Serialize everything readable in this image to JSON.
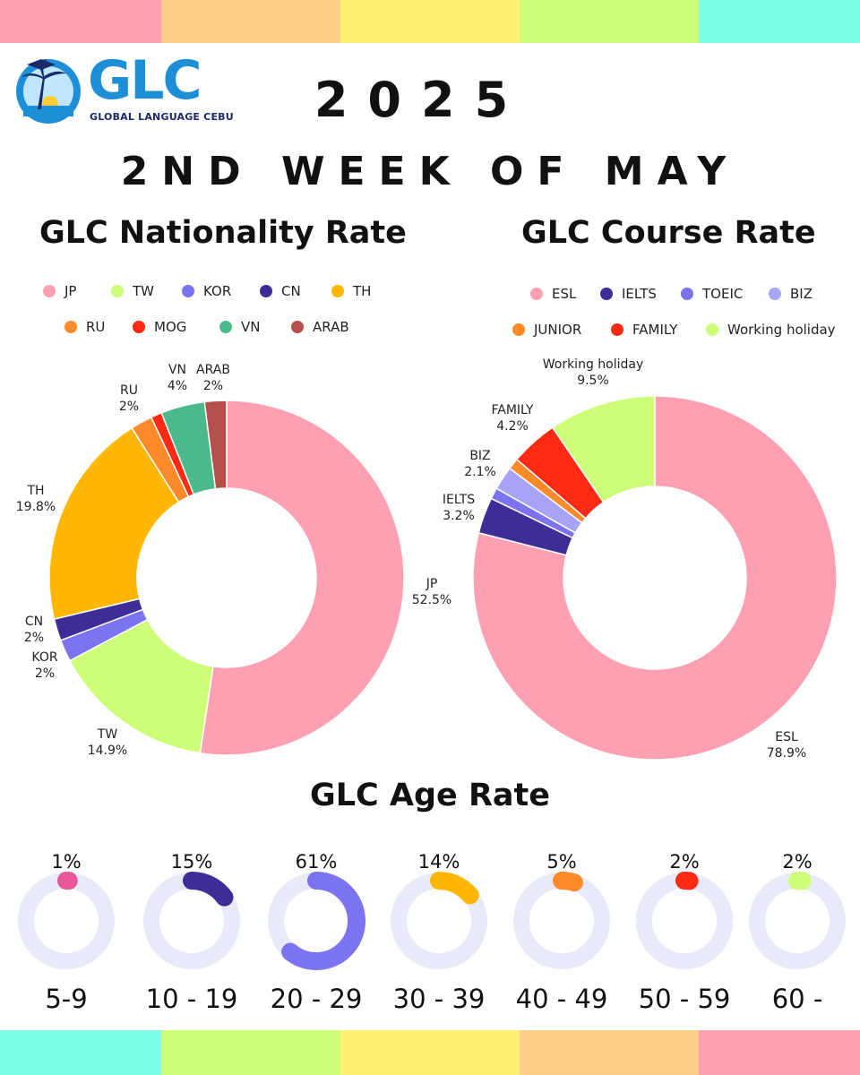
{
  "header": {
    "year": "2025",
    "week": "2ND WEEK OF MAY",
    "logo_text": "GLC",
    "logo_subtitle": "GLOBAL LANGUAGE CEBU"
  },
  "colors": {
    "stripes_top": [
      "#ff9fb2",
      "#ffd08a",
      "#fff176",
      "#ccff77",
      "#80ffe8"
    ],
    "stripes_bottom": [
      "#80ffe8",
      "#ccff77",
      "#fff176",
      "#ffd08a",
      "#ff9fb2"
    ],
    "ring_track": "#e9eaf9"
  },
  "chart_data": [
    {
      "id": "nationality",
      "type": "pie",
      "donut": true,
      "title": "GLC Nationality Rate",
      "legend": [
        "JP",
        "TW",
        "KOR",
        "CN",
        "TH",
        "RU",
        "MOG",
        "VN",
        "ARAB"
      ],
      "slices": [
        {
          "label": "JP",
          "value": 52.5,
          "display": "52.5%",
          "color": "#ff9fb2"
        },
        {
          "label": "TW",
          "value": 14.9,
          "display": "14.9%",
          "color": "#ccff77"
        },
        {
          "label": "KOR",
          "value": 2,
          "display": "2%",
          "color": "#7b73f0"
        },
        {
          "label": "CN",
          "value": 2,
          "display": "2%",
          "color": "#3c2e96"
        },
        {
          "label": "TH",
          "value": 19.8,
          "display": "19.8%",
          "color": "#ffb703"
        },
        {
          "label": "RU",
          "value": 2,
          "display": "2%",
          "color": "#ff8a2a"
        },
        {
          "label": "MOG",
          "value": 1,
          "display": "",
          "color": "#ff2a14"
        },
        {
          "label": "VN",
          "value": 4,
          "display": "4%",
          "color": "#4cb98c"
        },
        {
          "label": "ARAB",
          "value": 2,
          "display": "2%",
          "color": "#b5504c"
        }
      ]
    },
    {
      "id": "course",
      "type": "pie",
      "donut": true,
      "title": "GLC Course Rate",
      "legend": [
        "ESL",
        "IELTS",
        "TOEIC",
        "BIZ",
        "JUNIOR",
        "FAMILY",
        "Working holiday"
      ],
      "slices": [
        {
          "label": "ESL",
          "value": 78.9,
          "display": "78.9%",
          "color": "#ff9fb2"
        },
        {
          "label": "IELTS",
          "value": 3.2,
          "display": "3.2%",
          "color": "#3c2e96"
        },
        {
          "label": "TOEIC",
          "value": 1.0,
          "display": "",
          "color": "#7b73f0"
        },
        {
          "label": "BIZ",
          "value": 2.1,
          "display": "2.1%",
          "color": "#a7a3f7"
        },
        {
          "label": "JUNIOR",
          "value": 1.0,
          "display": "",
          "color": "#ff8a2a"
        },
        {
          "label": "FAMILY",
          "value": 4.2,
          "display": "4.2%",
          "color": "#ff2a14"
        },
        {
          "label": "Working holiday",
          "value": 9.5,
          "display": "9.5%",
          "color": "#ccff77"
        }
      ]
    },
    {
      "id": "age",
      "type": "pie",
      "title": "GLC Age Rate",
      "rings": [
        {
          "label": "5-9",
          "value": 1,
          "display": "1%",
          "color": "#e8579a"
        },
        {
          "label": "10 - 19",
          "value": 15,
          "display": "15%",
          "color": "#3c2e96"
        },
        {
          "label": "20 - 29",
          "value": 61,
          "display": "61%",
          "color": "#7b73f0"
        },
        {
          "label": "30 - 39",
          "value": 14,
          "display": "14%",
          "color": "#ffb703"
        },
        {
          "label": "40 - 49",
          "value": 5,
          "display": "5%",
          "color": "#ff8a2a"
        },
        {
          "label": "50 - 59",
          "value": 2,
          "display": "2%",
          "color": "#ff2a14"
        },
        {
          "label": "60 -",
          "value": 2,
          "display": "2%",
          "color": "#ccff77"
        }
      ]
    }
  ]
}
